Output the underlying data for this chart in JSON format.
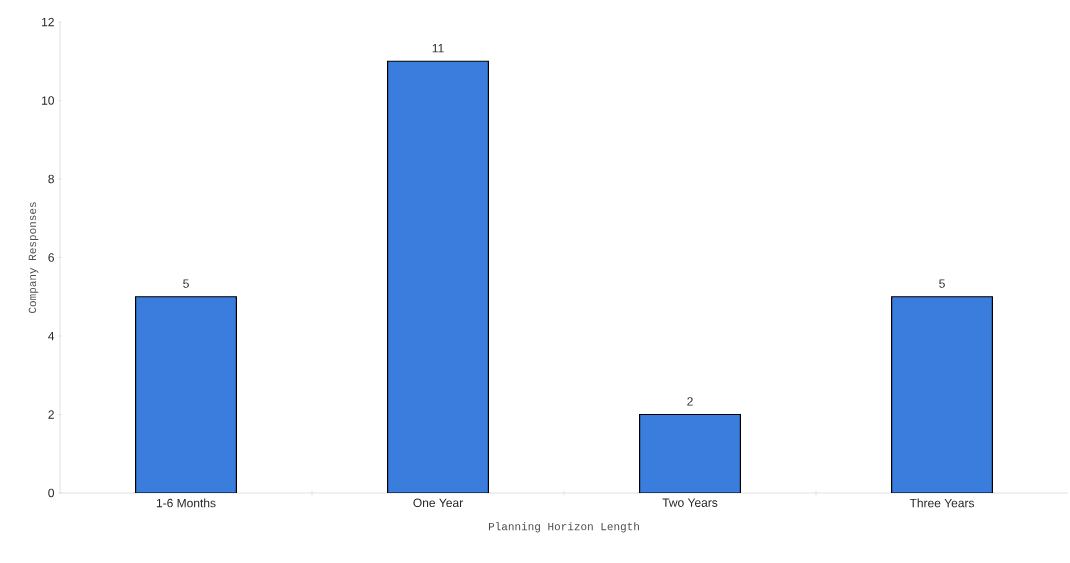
{
  "chart_data": {
    "type": "bar",
    "xlabel": "Planning Horizon Length",
    "ylabel": "Company Responses",
    "categories": [
      "1-6 Months",
      "One Year",
      "Two Years",
      "Three Years"
    ],
    "values": [
      5,
      11,
      2,
      5
    ],
    "color": "#3a7ddc",
    "ylim": [
      0,
      12
    ],
    "yticks": [
      0,
      2,
      4,
      6,
      8,
      10,
      12
    ],
    "data_labels": true
  }
}
